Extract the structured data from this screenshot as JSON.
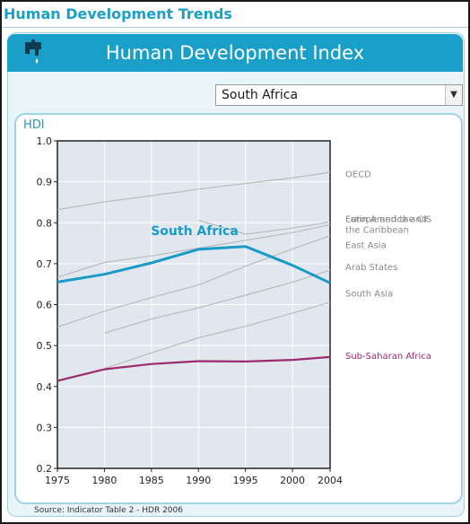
{
  "page": {
    "top_title": "Human Development Trends",
    "header_title": "Human Development Index",
    "source": "Source: Indicator Table 2 - HDR 2006"
  },
  "dropdown": {
    "value": "South Africa"
  },
  "icons": {
    "header": "tap-icon",
    "dropdown": "chevron-down-icon"
  },
  "colors": {
    "accent": "#1aa0c8",
    "highlight": "#1a9ac7",
    "sub_saharan": "#9b2a6e",
    "grey_line": "#bbbbbb",
    "plot_bg": "#e1e7ef"
  },
  "chart_data": {
    "type": "line",
    "ylabel": "HDI",
    "x": [
      1975,
      1980,
      1985,
      1990,
      1995,
      2000,
      2004
    ],
    "x_tick_labels": [
      "1975",
      "1980",
      "1985",
      "1990",
      "1995",
      "2000",
      "2004"
    ],
    "ylim": [
      0.2,
      1.0
    ],
    "y_ticks": [
      0.2,
      0.3,
      0.4,
      0.5,
      0.6,
      0.7,
      0.8,
      0.9,
      1.0
    ],
    "y_tick_labels": [
      "0.2",
      "0.3",
      "0.4",
      "0.5",
      "0.6",
      "0.7",
      "0.8",
      "0.9",
      "1.0"
    ],
    "grid": true,
    "selected_label": "South Africa",
    "series": [
      {
        "name": "OECD",
        "role": "reference",
        "label_lines": [
          "OECD"
        ],
        "points": [
          [
            1975,
            0.832
          ],
          [
            1980,
            0.851
          ],
          [
            1985,
            0.866
          ],
          [
            1990,
            0.882
          ],
          [
            1995,
            0.896
          ],
          [
            2000,
            0.91
          ],
          [
            2004,
            0.923
          ]
        ]
      },
      {
        "name": "Europe and the CIS",
        "role": "reference",
        "label_lines": [
          "Europe and the CIS"
        ],
        "points": [
          [
            1990,
            0.806
          ],
          [
            1995,
            0.772
          ],
          [
            2000,
            0.787
          ],
          [
            2004,
            0.802
          ]
        ]
      },
      {
        "name": "Latin America and the Caribbean",
        "role": "reference",
        "label_lines": [
          "Latin America and",
          "the Caribbean"
        ],
        "points": [
          [
            1975,
            0.667
          ],
          [
            1980,
            0.703
          ],
          [
            1985,
            0.719
          ],
          [
            1990,
            0.738
          ],
          [
            1995,
            0.757
          ],
          [
            2000,
            0.776
          ],
          [
            2004,
            0.795
          ]
        ]
      },
      {
        "name": "East Asia",
        "role": "reference",
        "label_lines": [
          "East Asia"
        ],
        "points": [
          [
            1975,
            0.545
          ],
          [
            1980,
            0.584
          ],
          [
            1985,
            0.617
          ],
          [
            1990,
            0.648
          ],
          [
            1995,
            0.694
          ],
          [
            2000,
            0.736
          ],
          [
            2004,
            0.768
          ]
        ]
      },
      {
        "name": "Arab States",
        "role": "reference",
        "label_lines": [
          "Arab States"
        ],
        "points": [
          [
            1980,
            0.53
          ],
          [
            1985,
            0.565
          ],
          [
            1990,
            0.592
          ],
          [
            1995,
            0.623
          ],
          [
            2000,
            0.655
          ],
          [
            2004,
            0.684
          ]
        ]
      },
      {
        "name": "South Asia",
        "role": "reference",
        "label_lines": [
          "South Asia"
        ],
        "points": [
          [
            1980,
            0.444
          ],
          [
            1985,
            0.482
          ],
          [
            1990,
            0.519
          ],
          [
            1995,
            0.547
          ],
          [
            2000,
            0.579
          ],
          [
            2004,
            0.606
          ]
        ]
      },
      {
        "name": "South Africa",
        "role": "selected",
        "points": [
          [
            1975,
            0.655
          ],
          [
            1980,
            0.674
          ],
          [
            1985,
            0.702
          ],
          [
            1990,
            0.735
          ],
          [
            1995,
            0.742
          ],
          [
            2000,
            0.696
          ],
          [
            2004,
            0.653
          ]
        ]
      },
      {
        "name": "Sub-Saharan Africa",
        "role": "highlight",
        "label_lines": [
          "Sub-Saharan Africa"
        ],
        "points": [
          [
            1975,
            0.414
          ],
          [
            1980,
            0.442
          ],
          [
            1985,
            0.455
          ],
          [
            1990,
            0.462
          ],
          [
            1995,
            0.461
          ],
          [
            2000,
            0.465
          ],
          [
            2004,
            0.472
          ]
        ]
      }
    ]
  }
}
